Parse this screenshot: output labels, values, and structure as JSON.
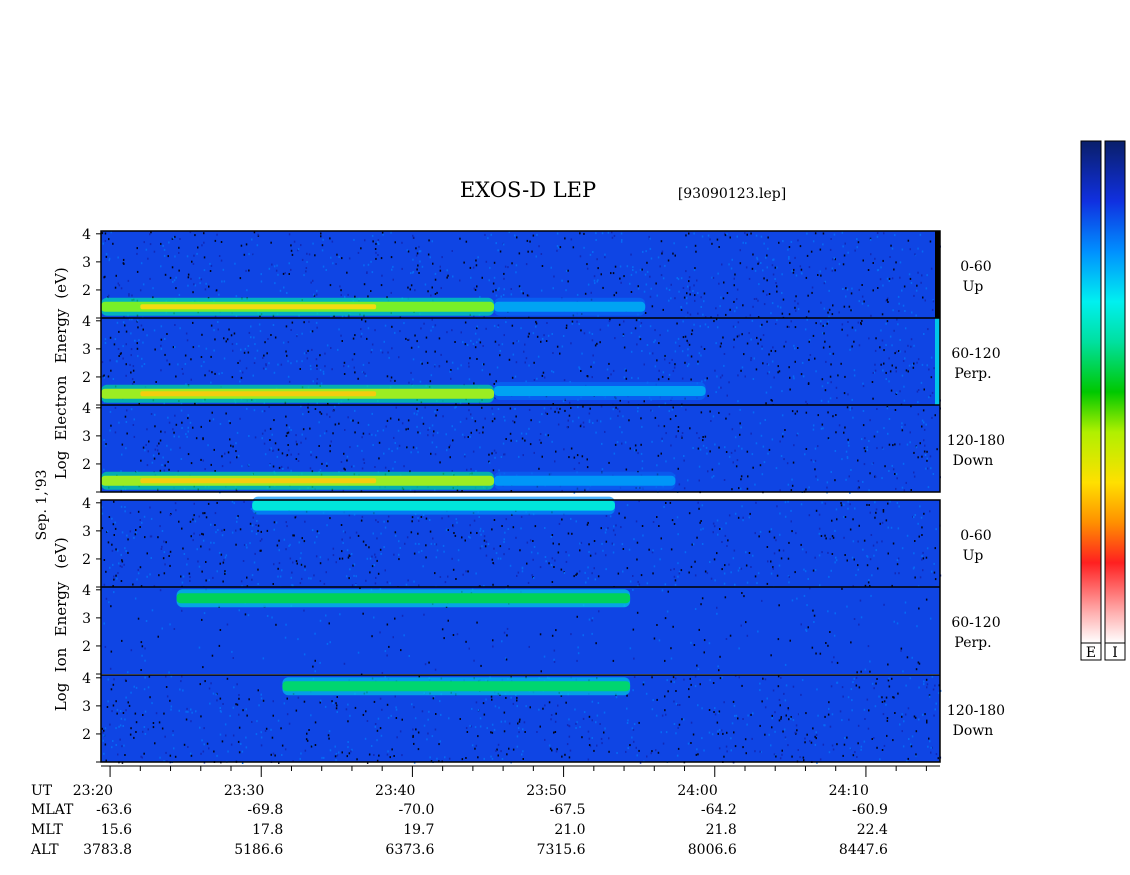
{
  "title": "EXOS-D LEP",
  "filename": "[93090123.lep]",
  "date_label": "Sep. 1,'93",
  "colorbar_labels": [
    "E",
    "I"
  ],
  "electron_ylabel": [
    "Log",
    "Electron",
    "Energy",
    "(eV)"
  ],
  "ion_ylabel": [
    "Log",
    "Ion",
    "Energy",
    "(eV)"
  ],
  "ytick_labels": [
    "1",
    "2",
    "3",
    "4"
  ],
  "panels": [
    {
      "group": "electron",
      "pitch": "0-60",
      "dir": "Up"
    },
    {
      "group": "electron",
      "pitch": "60-120",
      "dir": "Perp."
    },
    {
      "group": "electron",
      "pitch": "120-180",
      "dir": "Down"
    },
    {
      "group": "ion",
      "pitch": "0-60",
      "dir": "Up"
    },
    {
      "group": "ion",
      "pitch": "60-120",
      "dir": "Perp."
    },
    {
      "group": "ion",
      "pitch": "120-180",
      "dir": "Down"
    }
  ],
  "ephemeris": {
    "row_labels": [
      "UT",
      "MLAT",
      "MLT",
      "ALT"
    ],
    "columns": [
      {
        "UT": "23:20",
        "MLAT": "-63.6",
        "MLT": "15.6",
        "ALT": "3783.8"
      },
      {
        "UT": "23:30",
        "MLAT": "-69.8",
        "MLT": "17.8",
        "ALT": "5186.6"
      },
      {
        "UT": "23:40",
        "MLAT": "-70.0",
        "MLT": "19.7",
        "ALT": "6373.6"
      },
      {
        "UT": "23:50",
        "MLAT": "-67.5",
        "MLT": "21.0",
        "ALT": "7315.6"
      },
      {
        "UT": "24:00",
        "MLAT": "-64.2",
        "MLT": "21.8",
        "ALT": "8006.6"
      },
      {
        "UT": "24:10",
        "MLAT": "-60.9",
        "MLT": "22.4",
        "ALT": "8447.6"
      }
    ]
  },
  "chart_data": {
    "type": "heatmap",
    "title": "EXOS-D LEP",
    "xlabel": "UT",
    "x_ticks": [
      "23:20",
      "23:30",
      "23:40",
      "23:50",
      "24:00",
      "24:10"
    ],
    "xlim_minutes_after_2320": [
      0,
      55.5
    ],
    "ylabel_electron": "Log Electron Energy (eV)",
    "ylabel_ion": "Log Ion Energy (eV)",
    "ylim": [
      1,
      4.1
    ],
    "colorbar": [
      "E",
      "I"
    ],
    "features": [
      {
        "panel": 0,
        "type": "band",
        "t": [
          0,
          26
        ],
        "logE": 1.4,
        "level": 0.72
      },
      {
        "panel": 0,
        "type": "band",
        "t": [
          26,
          36
        ],
        "logE": 1.4,
        "level": 0.4
      },
      {
        "panel": 1,
        "type": "band",
        "t": [
          0,
          26
        ],
        "logE": 1.4,
        "level": 0.75
      },
      {
        "panel": 1,
        "type": "band",
        "t": [
          26,
          40
        ],
        "logE": 1.5,
        "level": 0.4
      },
      {
        "panel": 2,
        "type": "band",
        "t": [
          0,
          26
        ],
        "logE": 1.4,
        "level": 0.75
      },
      {
        "panel": 2,
        "type": "band",
        "t": [
          26,
          38
        ],
        "logE": 1.4,
        "level": 0.38
      },
      {
        "panel": 3,
        "type": "band",
        "t": [
          10,
          34
        ],
        "logE": 3.9,
        "level": 0.5
      },
      {
        "panel": 4,
        "type": "band",
        "t": [
          5,
          35
        ],
        "logE": 3.7,
        "level": 0.62
      },
      {
        "panel": 5,
        "type": "band",
        "t": [
          12,
          35
        ],
        "logE": 3.7,
        "level": 0.6
      }
    ]
  }
}
